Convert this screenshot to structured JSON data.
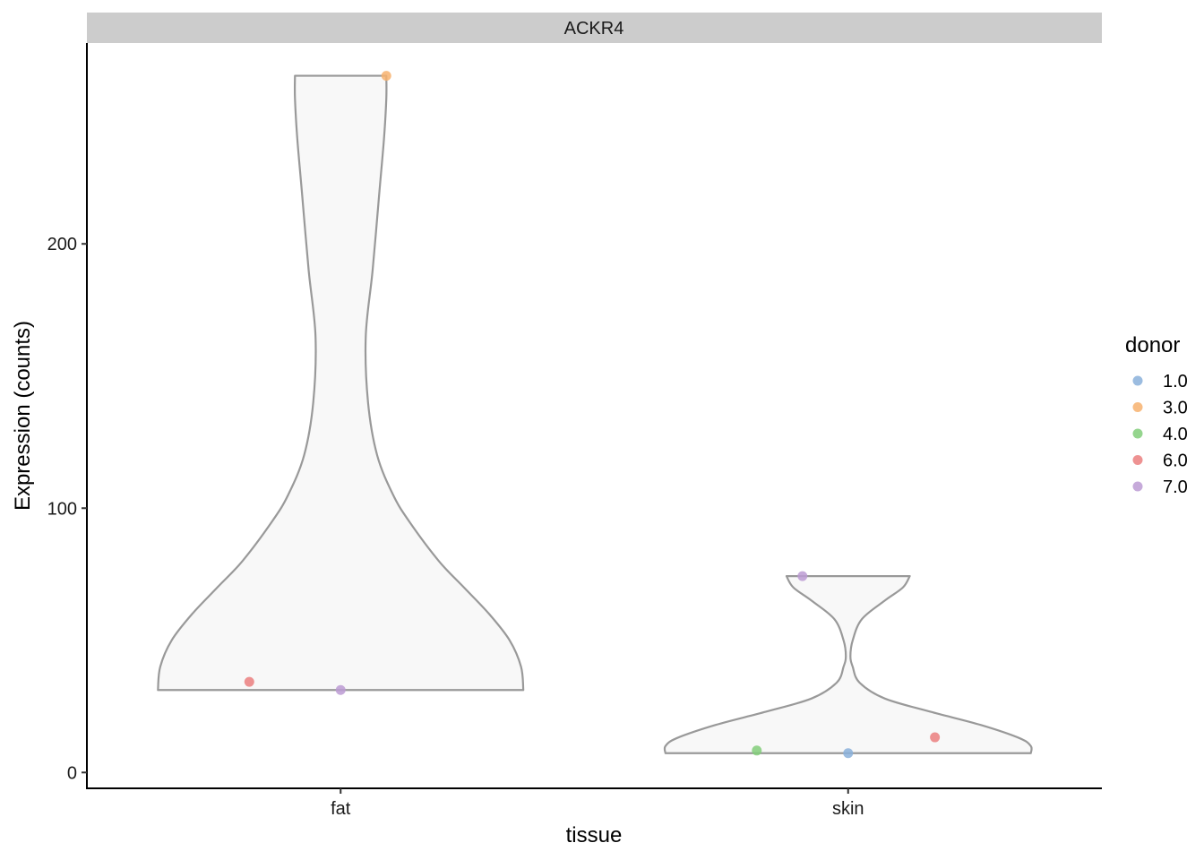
{
  "chart_data": {
    "type": "violin",
    "facet": "ACKR4",
    "xlabel": "tissue",
    "ylabel": "Expression (counts)",
    "categories": [
      "fat",
      "skin"
    ],
    "y_ticks": [
      0,
      100,
      200
    ],
    "ylim": [
      -6,
      276
    ],
    "legend": {
      "title": "donor",
      "position": "right",
      "entries": [
        {
          "label": "1.0",
          "color": "#8AB0DA"
        },
        {
          "label": "3.0",
          "color": "#F7B26E"
        },
        {
          "label": "4.0",
          "color": "#83CE7A"
        },
        {
          "label": "6.0",
          "color": "#EB7F7F"
        },
        {
          "label": "7.0",
          "color": "#BC9BD4"
        }
      ]
    },
    "violins": [
      {
        "category": "fat",
        "min": 31.2,
        "max": 263.6,
        "profile": [
          [
            31.2,
            0.8
          ],
          [
            40.0,
            0.79
          ],
          [
            50.0,
            0.74
          ],
          [
            60.0,
            0.65
          ],
          [
            70.0,
            0.54
          ],
          [
            80.0,
            0.43
          ],
          [
            95.0,
            0.3
          ],
          [
            105.0,
            0.23
          ],
          [
            120.0,
            0.16
          ],
          [
            140.0,
            0.12
          ],
          [
            165.0,
            0.11
          ],
          [
            190.0,
            0.14
          ],
          [
            220.0,
            0.17
          ],
          [
            240.0,
            0.19
          ],
          [
            255.0,
            0.2
          ],
          [
            263.6,
            0.2
          ]
        ]
      },
      {
        "category": "skin",
        "min": 7.3,
        "max": 74.3,
        "profile": [
          [
            7.3,
            0.8
          ],
          [
            10.0,
            0.8
          ],
          [
            13.0,
            0.75
          ],
          [
            18.0,
            0.58
          ],
          [
            23.0,
            0.36
          ],
          [
            28.0,
            0.16
          ],
          [
            34.0,
            0.05
          ],
          [
            40.0,
            0.02
          ],
          [
            44.0,
            0.01
          ],
          [
            50.0,
            0.02
          ],
          [
            58.0,
            0.06
          ],
          [
            65.0,
            0.16
          ],
          [
            70.0,
            0.24
          ],
          [
            74.3,
            0.27
          ]
        ]
      }
    ],
    "points": [
      {
        "category": "fat",
        "jitter": 0.2,
        "y": 263.6,
        "donor": "3.0"
      },
      {
        "category": "fat",
        "jitter": -0.4,
        "y": 34.3,
        "donor": "6.0"
      },
      {
        "category": "fat",
        "jitter": 0.0,
        "y": 31.2,
        "donor": "7.0"
      },
      {
        "category": "skin",
        "jitter": -0.2,
        "y": 74.3,
        "donor": "7.0"
      },
      {
        "category": "skin",
        "jitter": -0.4,
        "y": 8.3,
        "donor": "4.0"
      },
      {
        "category": "skin",
        "jitter": 0.0,
        "y": 7.3,
        "donor": "1.0"
      },
      {
        "category": "skin",
        "jitter": 0.38,
        "y": 13.3,
        "donor": "6.0"
      }
    ]
  }
}
